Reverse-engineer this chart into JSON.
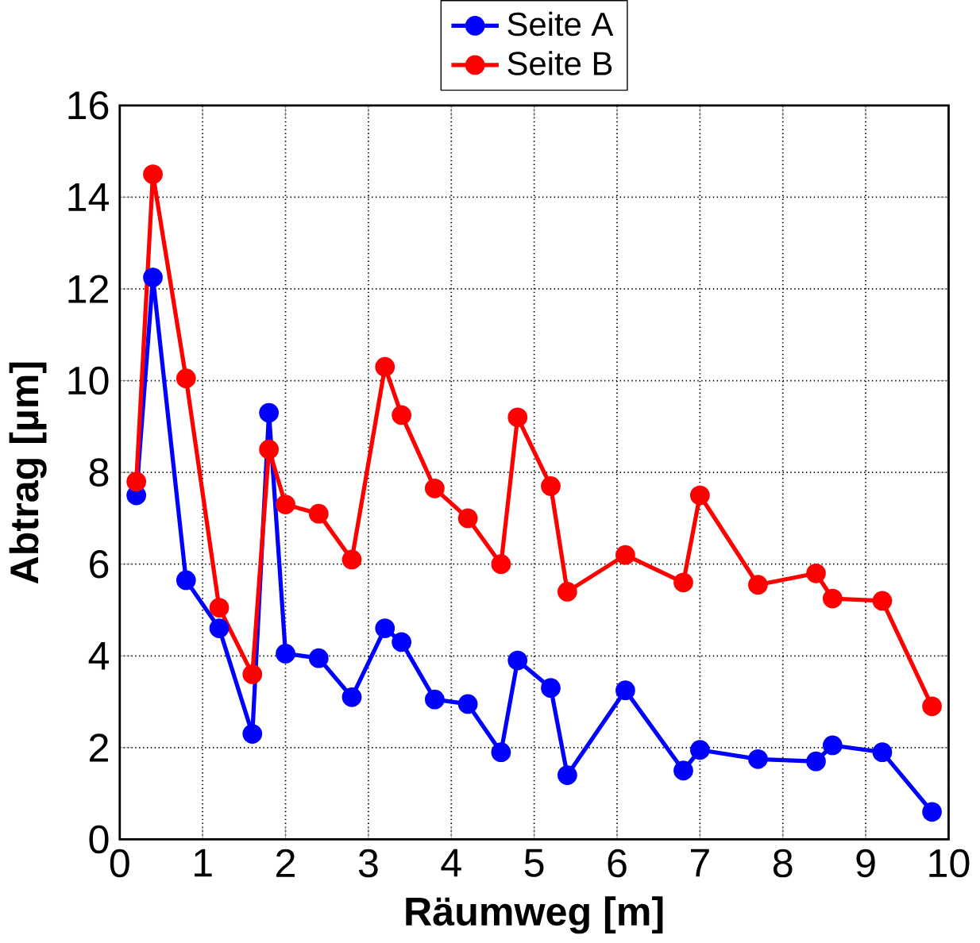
{
  "chart_data": {
    "type": "line",
    "xlabel": "Räumweg [m]",
    "ylabel": "Abtrag [µm]",
    "x": [
      0.2,
      0.4,
      0.8,
      1.2,
      1.6,
      1.8,
      2.0,
      2.4,
      2.8,
      3.2,
      3.4,
      3.8,
      4.2,
      4.6,
      4.8,
      5.2,
      5.4,
      6.1,
      6.8,
      7.0,
      7.7,
      8.4,
      8.6,
      9.2,
      9.8
    ],
    "series": [
      {
        "name": "Seite A",
        "color": "#0000ff",
        "values": [
          7.5,
          12.25,
          5.65,
          4.6,
          2.3,
          9.3,
          4.05,
          3.95,
          3.1,
          4.6,
          4.3,
          3.05,
          2.95,
          1.9,
          3.9,
          3.3,
          1.4,
          3.25,
          1.5,
          1.95,
          1.75,
          1.7,
          2.05,
          1.9,
          0.6
        ]
      },
      {
        "name": "Seite B",
        "color": "#ff0000",
        "values": [
          7.8,
          14.5,
          10.05,
          5.05,
          3.6,
          8.5,
          7.3,
          7.1,
          6.1,
          10.3,
          9.25,
          7.65,
          7.0,
          6.0,
          9.2,
          7.7,
          5.4,
          6.2,
          5.6,
          7.5,
          5.55,
          5.8,
          5.25,
          5.2,
          2.9
        ]
      }
    ],
    "xlim": [
      0,
      10
    ],
    "ylim": [
      0,
      16
    ],
    "xticks": [
      0,
      1,
      2,
      3,
      4,
      5,
      6,
      7,
      8,
      9,
      10
    ],
    "yticks": [
      0,
      2,
      4,
      6,
      8,
      10,
      12,
      14,
      16
    ],
    "grid": true,
    "legend": "top",
    "marker": "circle",
    "line_style": "solid"
  }
}
